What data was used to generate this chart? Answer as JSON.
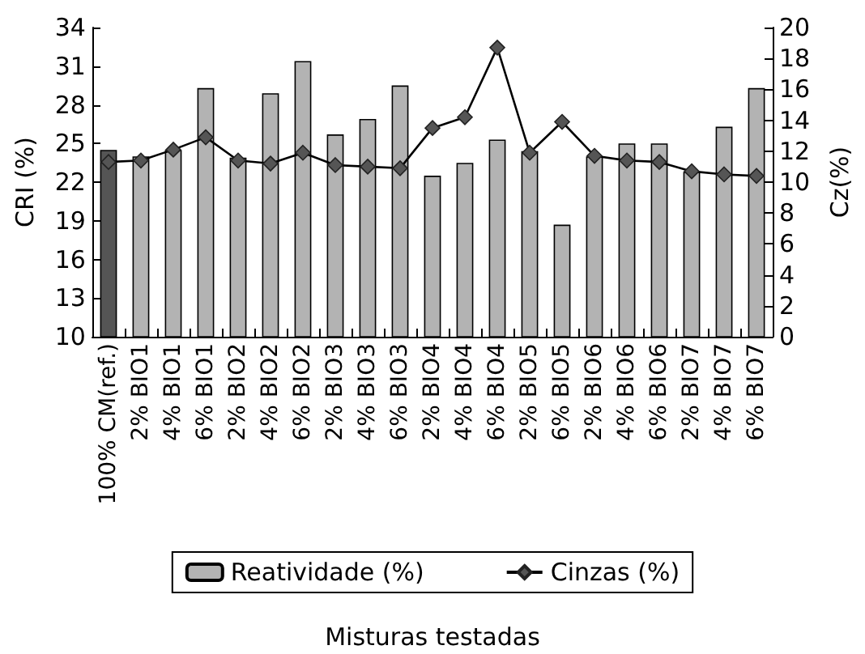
{
  "chart_data": {
    "type": "bar",
    "xlabel": "Misturas testadas",
    "ylabel": "CRI (%)",
    "y2label": "Cz(%)",
    "categories": [
      "100% CM(ref.)",
      "2% BIO1",
      "4% BIO1",
      "6% BIO1",
      "2% BIO2",
      "4% BIO2",
      "6% BIO2",
      "2% BIO3",
      "4% BIO3",
      "6% BIO3",
      "2% BIO4",
      "4% BIO4",
      "6% BIO4",
      "2% BIO5",
      "6% BIO5",
      "2% BIO6",
      "4% BIO6",
      "6% BIO6",
      "2% BIO7",
      "4% BIO7",
      "6% BIO7"
    ],
    "series": [
      {
        "name": "Reatividade (%)",
        "color": "#b3b3b3",
        "colors": [
          "#555555",
          "#b3b3b3",
          "#b3b3b3",
          "#b3b3b3",
          "#b3b3b3",
          "#b3b3b3",
          "#b3b3b3",
          "#b3b3b3",
          "#b3b3b3",
          "#b3b3b3",
          "#b3b3b3",
          "#b3b3b3",
          "#b3b3b3",
          "#b3b3b3",
          "#b3b3b3",
          "#b3b3b3",
          "#b3b3b3",
          "#b3b3b3",
          "#b3b3b3",
          "#b3b3b3",
          "#b3b3b3"
        ],
        "values": [
          24.5,
          24.0,
          24.5,
          29.3,
          23.9,
          28.9,
          31.4,
          25.7,
          26.9,
          29.5,
          22.5,
          23.5,
          25.3,
          24.4,
          18.7,
          24.0,
          25.0,
          25.0,
          22.8,
          26.3,
          29.3
        ]
      },
      {
        "name": "Cinzas (%)",
        "type": "line",
        "axis": "y2",
        "color": "#555555",
        "marker": "diamond",
        "values": [
          11.3,
          11.4,
          12.1,
          12.9,
          11.4,
          11.2,
          11.9,
          11.1,
          11.0,
          10.9,
          13.5,
          14.2,
          18.7,
          11.9,
          13.9,
          11.7,
          11.4,
          11.3,
          10.7,
          10.5,
          10.4
        ]
      }
    ],
    "ylim": [
      10,
      34
    ],
    "yticks": [
      10,
      13,
      16,
      19,
      22,
      25,
      28,
      31,
      34
    ],
    "y2lim": [
      0,
      20
    ],
    "y2ticks": [
      0,
      2,
      4,
      6,
      8,
      10,
      12,
      14,
      16,
      18,
      20
    ],
    "grid": false,
    "legend": "bottom"
  }
}
